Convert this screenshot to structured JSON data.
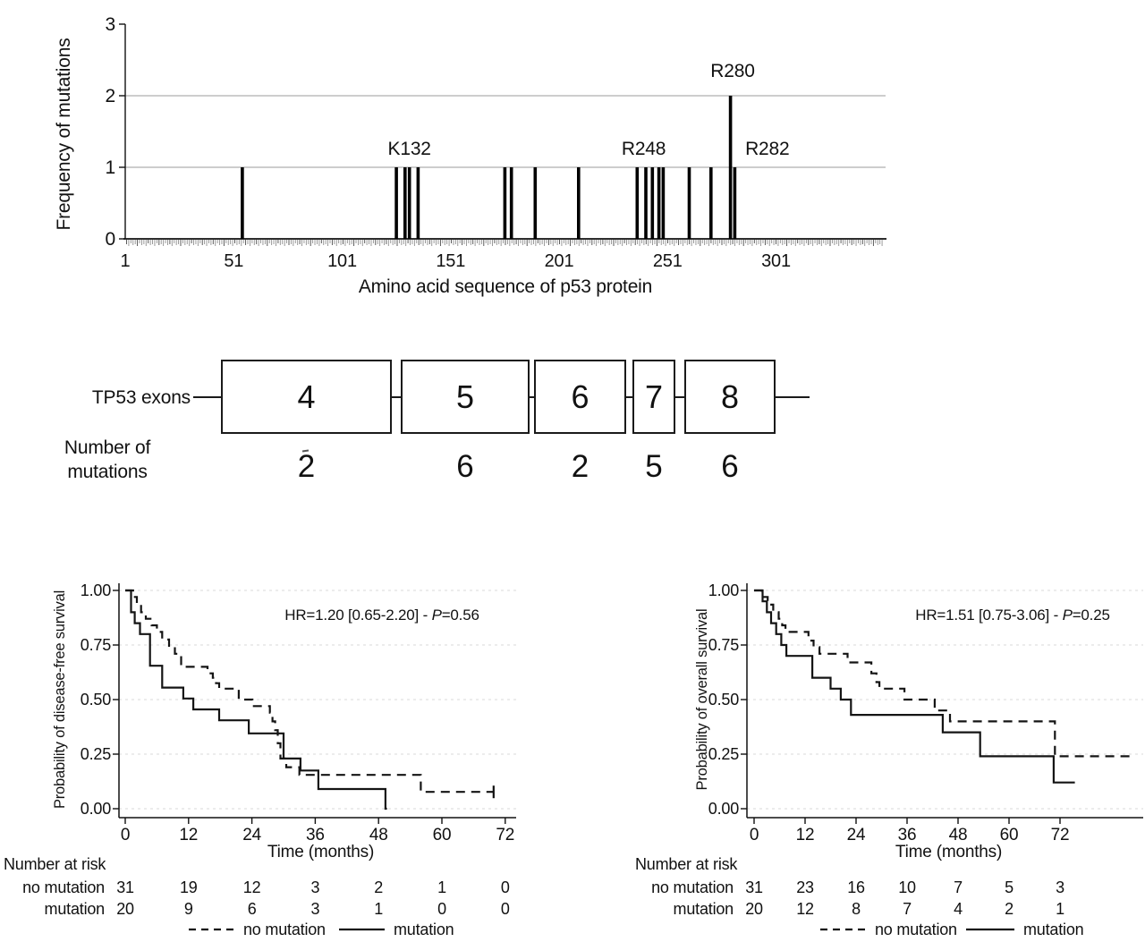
{
  "chart_data": [
    {
      "type": "lollipop",
      "name": "p53 mutation frequency map",
      "ylabel": "Frequency of mutations",
      "xlabel": "Amino acid sequence of p53 protein",
      "yticks": [
        0,
        1,
        2,
        3
      ],
      "ylim": [
        0,
        3
      ],
      "grid_y": [
        1,
        2
      ],
      "xticks": [
        1,
        51,
        101,
        151,
        201,
        251,
        301
      ],
      "xmax": 350,
      "mutations": [
        {
          "pos": 55,
          "count": 1
        },
        {
          "pos": 126,
          "count": 1
        },
        {
          "pos": 130,
          "count": 1
        },
        {
          "pos": 132,
          "count": 1
        },
        {
          "pos": 136,
          "count": 1
        },
        {
          "pos": 176,
          "count": 1
        },
        {
          "pos": 179,
          "count": 1
        },
        {
          "pos": 190,
          "count": 1
        },
        {
          "pos": 210,
          "count": 1
        },
        {
          "pos": 237,
          "count": 1
        },
        {
          "pos": 241,
          "count": 1
        },
        {
          "pos": 244,
          "count": 1
        },
        {
          "pos": 247,
          "count": 1
        },
        {
          "pos": 249,
          "count": 1
        },
        {
          "pos": 261,
          "count": 1
        },
        {
          "pos": 271,
          "count": 1
        },
        {
          "pos": 280,
          "count": 2
        },
        {
          "pos": 282,
          "count": 1
        }
      ],
      "labels": [
        {
          "text": "K132",
          "pos": 132,
          "level": 1
        },
        {
          "text": "R248",
          "pos": 240,
          "level": 1
        },
        {
          "text": "R280",
          "pos": 281,
          "level": 2
        },
        {
          "text": "R282",
          "pos": 297,
          "level": 1
        }
      ]
    },
    {
      "type": "exon-diagram",
      "track_label": "TP53 exons",
      "count_label_line1": "Number of",
      "count_label_line2": "mutations",
      "exons": [
        {
          "label": "4",
          "mutations": "2"
        },
        {
          "label": "5",
          "mutations": "6"
        },
        {
          "label": "6",
          "mutations": "2"
        },
        {
          "label": "7",
          "mutations": "5"
        },
        {
          "label": "8",
          "mutations": "6"
        }
      ]
    },
    {
      "type": "line",
      "subtype": "kaplan-meier",
      "name": "disease-free survival",
      "ylabel": "Probability of disease-free survival",
      "xlabel": "Time (months)",
      "annotation": {
        "prefix": "HR=1.20 [0.65-2.20] - ",
        "italic": "P",
        "suffix": "=0.56"
      },
      "xticks": [
        0,
        12,
        24,
        36,
        48,
        60,
        72
      ],
      "ytick_labels": [
        "0.00",
        "0.25",
        "0.50",
        "0.75",
        "1.00"
      ],
      "yticks": [
        0,
        0.25,
        0.5,
        0.75,
        1
      ],
      "ylim": [
        0,
        1
      ],
      "risk_title": "Number at risk",
      "risk_rows": [
        {
          "label": "no mutation",
          "values": [
            "31",
            "19",
            "12",
            "3",
            "2",
            "1",
            "0"
          ]
        },
        {
          "label": "mutation",
          "values": [
            "20",
            "9",
            "6",
            "3",
            "1",
            "0",
            "0"
          ]
        }
      ],
      "legend": [
        {
          "label": "no mutation",
          "style": "dashed"
        },
        {
          "label": "mutation",
          "style": "solid"
        }
      ],
      "series": [
        {
          "name": "mutation",
          "style": "solid",
          "end": 49.6,
          "censor_at_end": false,
          "steps": [
            [
              0,
              1
            ],
            [
              1.1,
              0.9
            ],
            [
              1.8,
              0.85
            ],
            [
              2.8,
              0.8
            ],
            [
              4.7,
              0.655
            ],
            [
              7,
              0.555
            ],
            [
              11,
              0.505
            ],
            [
              12.9,
              0.455
            ],
            [
              17.8,
              0.405
            ],
            [
              23.4,
              0.345
            ],
            [
              30,
              0.23
            ],
            [
              33.2,
              0.175
            ],
            [
              36.6,
              0.09
            ],
            [
              49.3,
              0
            ]
          ]
        },
        {
          "name": "no mutation",
          "style": "dashed",
          "end": 69.8,
          "censor_at_end": true,
          "steps": [
            [
              0,
              1
            ],
            [
              1.5,
              0.97
            ],
            [
              2.2,
              0.935
            ],
            [
              3,
              0.9
            ],
            [
              3.9,
              0.87
            ],
            [
              5,
              0.84
            ],
            [
              6,
              0.81
            ],
            [
              7,
              0.775
            ],
            [
              8.3,
              0.74
            ],
            [
              9.4,
              0.71
            ],
            [
              10.6,
              0.65
            ],
            [
              15.6,
              0.62
            ],
            [
              16.6,
              0.6
            ],
            [
              17.2,
              0.575
            ],
            [
              17.8,
              0.55
            ],
            [
              21.5,
              0.5
            ],
            [
              24.1,
              0.47
            ],
            [
              27.4,
              0.44
            ],
            [
              27.9,
              0.4
            ],
            [
              28.4,
              0.36
            ],
            [
              28.9,
              0.3
            ],
            [
              29.4,
              0.23
            ],
            [
              30.5,
              0.19
            ],
            [
              33,
              0.155
            ],
            [
              56,
              0.077
            ]
          ]
        }
      ]
    },
    {
      "type": "line",
      "subtype": "kaplan-meier",
      "name": "overall survival",
      "ylabel": "Probability of overall survival",
      "xlabel": "Time (months)",
      "annotation": {
        "prefix": "HR=1.51 [0.75-3.06] - ",
        "italic": "P",
        "suffix": "=0.25"
      },
      "xticks": [
        0,
        12,
        24,
        36,
        48,
        60,
        72
      ],
      "ytick_labels": [
        "0.00",
        "0.25",
        "0.50",
        "0.75",
        "1.00"
      ],
      "yticks": [
        0,
        0.25,
        0.5,
        0.75,
        1
      ],
      "ylim": [
        0,
        1
      ],
      "risk_title": "Number at risk",
      "risk_rows": [
        {
          "label": "no mutation",
          "values": [
            "31",
            "23",
            "16",
            "10",
            "7",
            "5",
            "3"
          ]
        },
        {
          "label": "mutation",
          "values": [
            "20",
            "12",
            "8",
            "7",
            "4",
            "2",
            "1"
          ]
        }
      ],
      "legend": [
        {
          "label": "no mutation",
          "style": "dashed"
        },
        {
          "label": "mutation",
          "style": "solid"
        }
      ],
      "series": [
        {
          "name": "mutation",
          "style": "solid",
          "end": 75.5,
          "censor_at_end": false,
          "steps": [
            [
              0,
              1
            ],
            [
              2,
              0.95
            ],
            [
              3,
              0.9
            ],
            [
              4,
              0.85
            ],
            [
              5.2,
              0.8
            ],
            [
              6.4,
              0.75
            ],
            [
              7.6,
              0.7
            ],
            [
              13.7,
              0.6
            ],
            [
              18,
              0.55
            ],
            [
              20.4,
              0.5
            ],
            [
              22.8,
              0.43
            ],
            [
              44.4,
              0.35
            ],
            [
              53.2,
              0.24
            ],
            [
              70.5,
              0.12
            ]
          ]
        },
        {
          "name": "no mutation",
          "style": "dashed",
          "end": 88.5,
          "censor_at_end": false,
          "steps": [
            [
              0,
              1
            ],
            [
              1.8,
              0.97
            ],
            [
              3.2,
              0.935
            ],
            [
              4.5,
              0.9
            ],
            [
              5.8,
              0.87
            ],
            [
              6.6,
              0.84
            ],
            [
              7.4,
              0.81
            ],
            [
              12.8,
              0.77
            ],
            [
              14,
              0.74
            ],
            [
              15.4,
              0.71
            ],
            [
              22,
              0.67
            ],
            [
              27.6,
              0.62
            ],
            [
              28.8,
              0.58
            ],
            [
              29.5,
              0.55
            ],
            [
              35.4,
              0.5
            ],
            [
              42.5,
              0.45
            ],
            [
              46.1,
              0.4
            ],
            [
              70.8,
              0.24
            ]
          ]
        }
      ]
    }
  ]
}
